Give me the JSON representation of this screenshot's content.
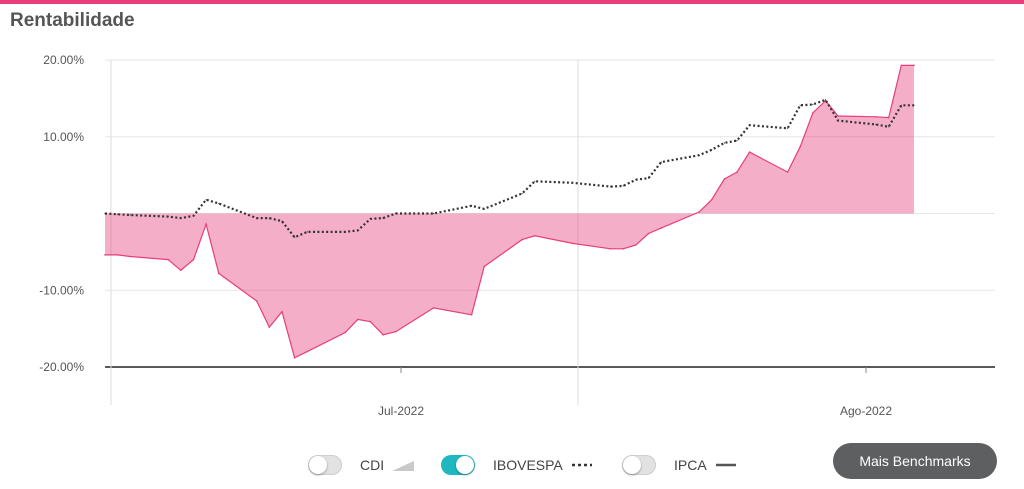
{
  "header": {
    "title": "Rentabilidade",
    "accent_color": "#e83e7a"
  },
  "legend": {
    "items": [
      {
        "label": "CDI",
        "enabled": false,
        "swatch": "area-wedge"
      },
      {
        "label": "IBOVESPA",
        "enabled": true,
        "swatch": "dotted-line"
      },
      {
        "label": "IPCA",
        "enabled": false,
        "swatch": "solid-line"
      }
    ],
    "toggle_on_color": "#1fb8c0"
  },
  "actions": {
    "more_benchmarks_label": "Mais Benchmarks"
  },
  "chart_data": {
    "type": "area",
    "title": "Rentabilidade",
    "xlabel": "",
    "ylabel": "",
    "ylim": [
      -20,
      20
    ],
    "y_ticks": [
      {
        "value": 20,
        "label": "20.00%"
      },
      {
        "value": 10,
        "label": "10.00%"
      },
      {
        "value": -10,
        "label": "-10.00%"
      },
      {
        "value": -20,
        "label": "-20.00%"
      }
    ],
    "x_ticks": [
      {
        "date": "2022-07-01",
        "label": "Jul-2022"
      },
      {
        "date": "2022-08-01",
        "label": "Ago-2022"
      }
    ],
    "grid": true,
    "series": [
      {
        "color": "#e83e7a",
        "style": "area",
        "points": [
          [
            "2022-06-01",
            -5.4
          ],
          [
            "2022-06-02",
            -5.4
          ],
          [
            "2022-06-03",
            -5.6
          ],
          [
            "2022-06-06",
            -6.0
          ],
          [
            "2022-06-07",
            -7.4
          ],
          [
            "2022-06-08",
            -6.0
          ],
          [
            "2022-06-09",
            -1.4
          ],
          [
            "2022-06-10",
            -7.8
          ],
          [
            "2022-06-13",
            -11.4
          ],
          [
            "2022-06-14",
            -14.8
          ],
          [
            "2022-06-15",
            -12.8
          ],
          [
            "2022-06-16",
            -18.8
          ],
          [
            "2022-06-17",
            -18.0
          ],
          [
            "2022-06-20",
            -15.5
          ],
          [
            "2022-06-21",
            -13.8
          ],
          [
            "2022-06-22",
            -14.1
          ],
          [
            "2022-06-23",
            -15.8
          ],
          [
            "2022-06-24",
            -15.4
          ],
          [
            "2022-06-27",
            -12.3
          ],
          [
            "2022-06-30",
            -13.2
          ],
          [
            "2022-07-01",
            -6.9
          ],
          [
            "2022-07-04",
            -3.4
          ],
          [
            "2022-07-05",
            -2.9
          ],
          [
            "2022-07-08",
            -3.9
          ],
          [
            "2022-07-11",
            -4.6
          ],
          [
            "2022-07-12",
            -4.6
          ],
          [
            "2022-07-13",
            -4.1
          ],
          [
            "2022-07-14",
            -2.6
          ],
          [
            "2022-07-15",
            -1.9
          ],
          [
            "2022-07-18",
            0.2
          ],
          [
            "2022-07-19",
            1.8
          ],
          [
            "2022-07-20",
            4.5
          ],
          [
            "2022-07-21",
            5.4
          ],
          [
            "2022-07-22",
            8.0
          ],
          [
            "2022-07-25",
            5.4
          ],
          [
            "2022-07-26",
            8.7
          ],
          [
            "2022-07-27",
            13.1
          ],
          [
            "2022-07-28",
            14.7
          ],
          [
            "2022-07-29",
            12.7
          ],
          [
            "2022-08-01",
            12.6
          ],
          [
            "2022-08-02",
            12.5
          ],
          [
            "2022-08-03",
            19.3
          ],
          [
            "2022-08-04",
            19.3
          ]
        ]
      },
      {
        "name": "IBOVESPA",
        "color": "#333333",
        "style": "dotted",
        "points": [
          [
            "2022-06-01",
            0.0
          ],
          [
            "2022-06-02",
            -0.1
          ],
          [
            "2022-06-03",
            -0.2
          ],
          [
            "2022-06-06",
            -0.4
          ],
          [
            "2022-06-07",
            -0.6
          ],
          [
            "2022-06-08",
            -0.3
          ],
          [
            "2022-06-09",
            1.8
          ],
          [
            "2022-06-10",
            1.3
          ],
          [
            "2022-06-13",
            -0.6
          ],
          [
            "2022-06-14",
            -0.6
          ],
          [
            "2022-06-15",
            -1.0
          ],
          [
            "2022-06-16",
            -3.1
          ],
          [
            "2022-06-17",
            -2.4
          ],
          [
            "2022-06-20",
            -2.4
          ],
          [
            "2022-06-21",
            -2.2
          ],
          [
            "2022-06-22",
            -0.7
          ],
          [
            "2022-06-23",
            -0.6
          ],
          [
            "2022-06-24",
            0.0
          ],
          [
            "2022-06-27",
            0.0
          ],
          [
            "2022-06-30",
            1.0
          ],
          [
            "2022-07-01",
            0.6
          ],
          [
            "2022-07-04",
            2.6
          ],
          [
            "2022-07-05",
            4.2
          ],
          [
            "2022-07-08",
            4.0
          ],
          [
            "2022-07-11",
            3.5
          ],
          [
            "2022-07-12",
            3.6
          ],
          [
            "2022-07-13",
            4.4
          ],
          [
            "2022-07-14",
            4.6
          ],
          [
            "2022-07-15",
            6.7
          ],
          [
            "2022-07-18",
            7.6
          ],
          [
            "2022-07-19",
            8.3
          ],
          [
            "2022-07-20",
            9.2
          ],
          [
            "2022-07-21",
            9.5
          ],
          [
            "2022-07-22",
            11.5
          ],
          [
            "2022-07-25",
            11.1
          ],
          [
            "2022-07-26",
            14.1
          ],
          [
            "2022-07-27",
            14.2
          ],
          [
            "2022-07-28",
            14.8
          ],
          [
            "2022-07-29",
            12.1
          ],
          [
            "2022-08-01",
            11.6
          ],
          [
            "2022-08-02",
            11.3
          ],
          [
            "2022-08-03",
            14.1
          ],
          [
            "2022-08-04",
            14.1
          ]
        ]
      }
    ]
  }
}
